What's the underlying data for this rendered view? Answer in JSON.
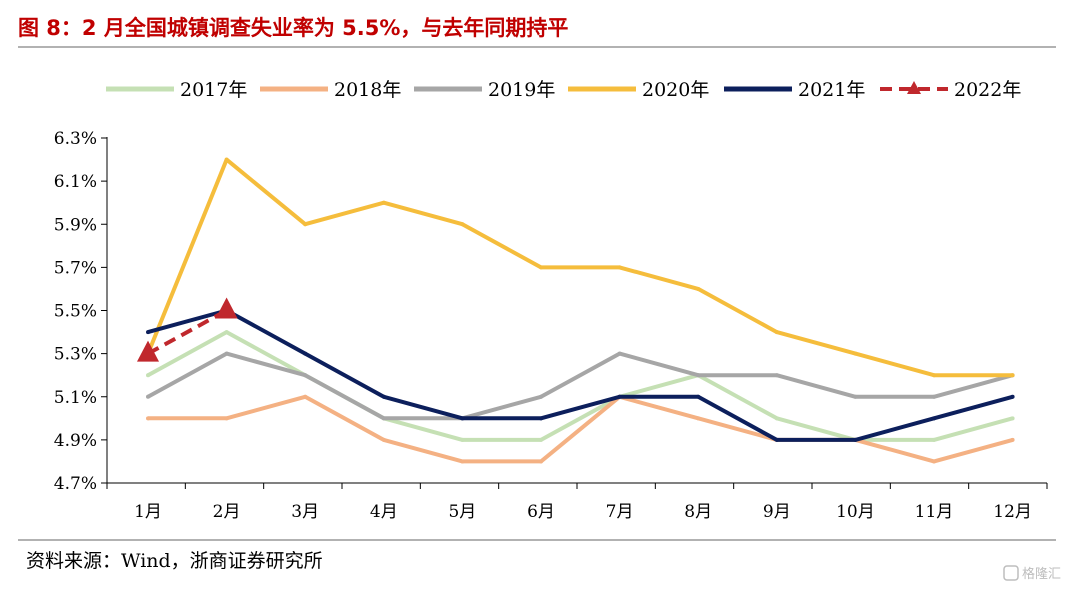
{
  "header": {
    "title": "图 8：2 月全国城镇调查失业率为 5.5%，与去年同期持平"
  },
  "source": "资料来源：Wind，浙商证券研究所",
  "watermark": "格隆汇",
  "chart_data": {
    "type": "line",
    "title": "图 8：2 月全国城镇调查失业率为 5.5%，与去年同期持平",
    "xlabel": "",
    "ylabel": "",
    "categories": [
      "1月",
      "2月",
      "3月",
      "4月",
      "5月",
      "6月",
      "7月",
      "8月",
      "9月",
      "10月",
      "11月",
      "12月"
    ],
    "ylim": [
      4.7,
      6.3
    ],
    "yticks": [
      4.7,
      4.9,
      5.1,
      5.3,
      5.5,
      5.7,
      5.9,
      6.1,
      6.3
    ],
    "ytick_labels": [
      "4.7%",
      "4.9%",
      "5.1%",
      "5.3%",
      "5.5%",
      "5.7%",
      "5.9%",
      "6.1%",
      "6.3%"
    ],
    "grid": false,
    "legend_position": "top",
    "series": [
      {
        "name": "2017年",
        "color": "#c5e0b4",
        "style": "solid",
        "values": [
          5.2,
          5.4,
          5.2,
          5.0,
          4.9,
          4.9,
          5.1,
          5.2,
          5.0,
          4.9,
          4.9,
          5.0
        ]
      },
      {
        "name": "2018年",
        "color": "#f4b183",
        "style": "solid",
        "values": [
          5.0,
          5.0,
          5.1,
          4.9,
          4.8,
          4.8,
          5.1,
          5.0,
          4.9,
          4.9,
          4.8,
          4.9
        ]
      },
      {
        "name": "2019年",
        "color": "#a6a6a6",
        "style": "solid",
        "values": [
          5.1,
          5.3,
          5.2,
          5.0,
          5.0,
          5.1,
          5.3,
          5.2,
          5.2,
          5.1,
          5.1,
          5.2
        ]
      },
      {
        "name": "2020年",
        "color": "#f5bd3c",
        "style": "solid",
        "values": [
          5.3,
          6.2,
          5.9,
          6.0,
          5.9,
          5.7,
          5.7,
          5.6,
          5.4,
          5.3,
          5.2,
          5.2
        ]
      },
      {
        "name": "2021年",
        "color": "#0c1f5c",
        "style": "solid",
        "values": [
          5.4,
          5.5,
          5.3,
          5.1,
          5.0,
          5.0,
          5.1,
          5.1,
          4.9,
          4.9,
          5.0,
          5.1
        ]
      },
      {
        "name": "2022年",
        "color": "#c0282d",
        "style": "dashed-triangle",
        "values": [
          5.3,
          5.5,
          null,
          null,
          null,
          null,
          null,
          null,
          null,
          null,
          null,
          null
        ]
      }
    ]
  }
}
